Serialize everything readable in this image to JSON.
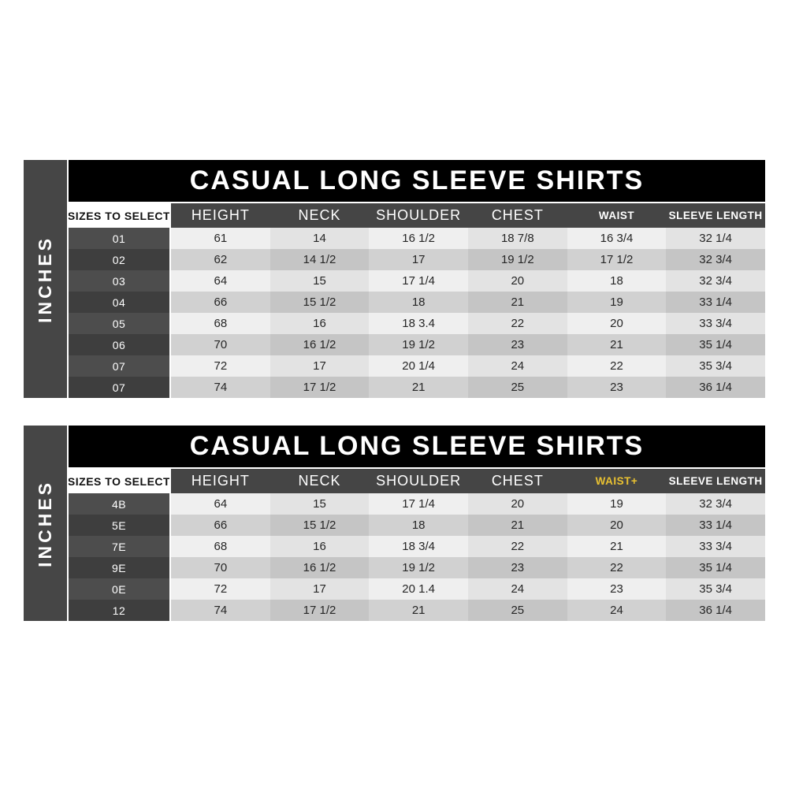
{
  "sidebar_label": "INCHES",
  "colors": {
    "title_bar_bg": "#000000",
    "title_text": "#ffffff",
    "header_bg": "#454545",
    "sidebar_bg": "#464646",
    "waist_plus_accent": "#e9c131",
    "row_light": "#efefef",
    "row_dark": "#c5c5c5",
    "size_col_light": "#4d4d4d",
    "size_col_dark": "#3e3e3e"
  },
  "chart_data": [
    {
      "type": "table",
      "title": "CASUAL LONG SLEEVE SHIRTS",
      "unit_label": "INCHES",
      "columns": [
        "SIZES TO SELECT",
        "HEIGHT",
        "NECK",
        "SHOULDER",
        "CHEST",
        "WAIST",
        "SLEEVE LENGTH"
      ],
      "waist_highlighted": false,
      "rows": [
        [
          "01",
          "61",
          "14",
          "16 1/2",
          "18 7/8",
          "16 3/4",
          "32 1/4"
        ],
        [
          "02",
          "62",
          "14 1/2",
          "17",
          "19 1/2",
          "17 1/2",
          "32 3/4"
        ],
        [
          "03",
          "64",
          "15",
          "17 1/4",
          "20",
          "18",
          "32 3/4"
        ],
        [
          "04",
          "66",
          "15 1/2",
          "18",
          "21",
          "19",
          "33 1/4"
        ],
        [
          "05",
          "68",
          "16",
          "18 3.4",
          "22",
          "20",
          "33 3/4"
        ],
        [
          "06",
          "70",
          "16 1/2",
          "19 1/2",
          "23",
          "21",
          "35 1/4"
        ],
        [
          "07",
          "72",
          "17",
          "20 1/4",
          "24",
          "22",
          "35 3/4"
        ],
        [
          "07",
          "74",
          "17 1/2",
          "21",
          "25",
          "23",
          "36 1/4"
        ]
      ]
    },
    {
      "type": "table",
      "title": "CASUAL LONG SLEEVE SHIRTS",
      "unit_label": "INCHES",
      "columns": [
        "SIZES TO SELECT",
        "HEIGHT",
        "NECK",
        "SHOULDER",
        "CHEST",
        "WAIST+",
        "SLEEVE LENGTH"
      ],
      "waist_highlighted": true,
      "rows": [
        [
          "4B",
          "64",
          "15",
          "17 1/4",
          "20",
          "19",
          "32 3/4"
        ],
        [
          "5E",
          "66",
          "15 1/2",
          "18",
          "21",
          "20",
          "33 1/4"
        ],
        [
          "7E",
          "68",
          "16",
          "18 3/4",
          "22",
          "21",
          "33 3/4"
        ],
        [
          "9E",
          "70",
          "16 1/2",
          "19 1/2",
          "23",
          "22",
          "35 1/4"
        ],
        [
          "0E",
          "72",
          "17",
          "20 1.4",
          "24",
          "23",
          "35 3/4"
        ],
        [
          "12",
          "74",
          "17 1/2",
          "21",
          "25",
          "24",
          "36 1/4"
        ]
      ]
    }
  ]
}
